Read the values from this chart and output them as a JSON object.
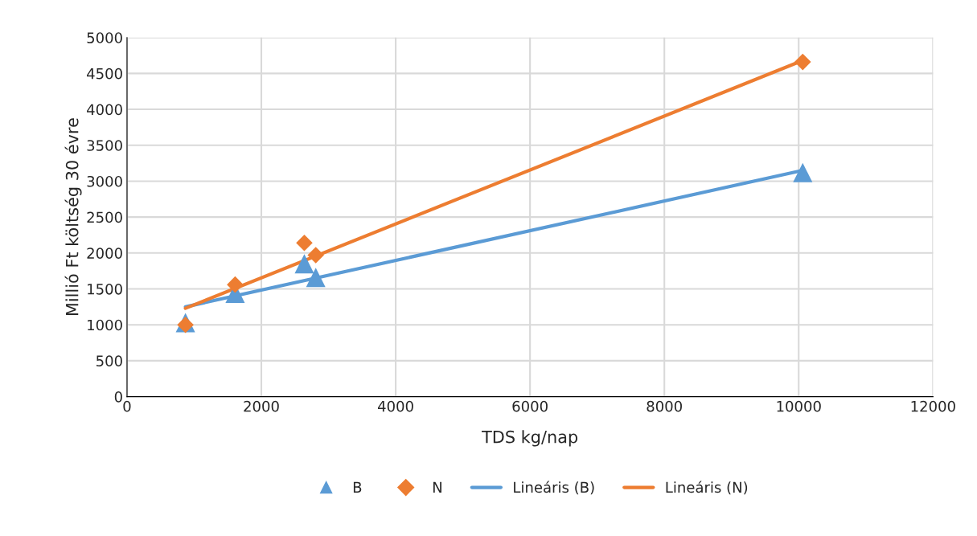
{
  "chart_data": {
    "type": "scatter",
    "xlabel": "TDS kg/nap",
    "ylabel": "Millió Ft költség 30 évre",
    "xlim": [
      0,
      12000
    ],
    "xticks": [
      0,
      2000,
      4000,
      6000,
      8000,
      10000,
      12000
    ],
    "ylim": [
      0,
      5000
    ],
    "yticks": [
      0,
      500,
      1000,
      1500,
      2000,
      2500,
      3000,
      3500,
      4000,
      4500,
      5000
    ],
    "grid": true,
    "legend": "bottom",
    "series": [
      {
        "name": "B",
        "marker": "triangle",
        "color": "#5b9bd5",
        "x": [
          870,
          1610,
          2640,
          2810,
          10060
        ],
        "values": [
          1030,
          1440,
          1850,
          1660,
          3120
        ]
      },
      {
        "name": "N",
        "marker": "diamond",
        "color": "#ed7d31",
        "x": [
          870,
          1610,
          2640,
          2810,
          10060
        ],
        "values": [
          1000,
          1560,
          2140,
          1970,
          4660
        ]
      },
      {
        "name": "Lineáris (B)",
        "type": "line",
        "marker": "none",
        "line_style": "solid",
        "color": "#5b9bd5",
        "x": [
          870,
          10060
        ],
        "values": [
          1250,
          3150
        ]
      },
      {
        "name": "Lineáris (N)",
        "type": "line",
        "marker": "none",
        "line_style": "solid",
        "color": "#ed7d31",
        "x": [
          870,
          10060
        ],
        "values": [
          1230,
          4680
        ]
      }
    ]
  }
}
